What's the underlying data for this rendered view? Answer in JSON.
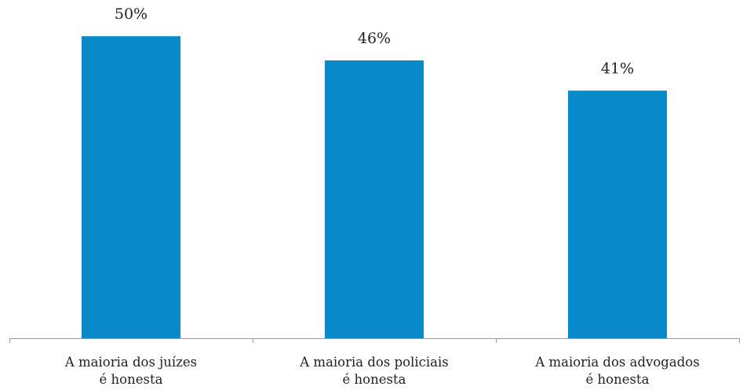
{
  "chart_data": {
    "type": "bar",
    "categories": [
      [
        "A maioria dos juízes",
        "é honesta"
      ],
      [
        "A maioria dos policiais",
        "é honesta"
      ],
      [
        "A maioria dos advogados",
        "é honesta"
      ]
    ],
    "values": [
      50,
      46,
      41
    ],
    "data_labels": [
      "50%",
      "46%",
      "41%"
    ],
    "title": "",
    "xlabel": "",
    "ylabel": "",
    "ylim": [
      0,
      56
    ],
    "grid": false,
    "legend": "none",
    "colors": {
      "bar": "#0789CA",
      "axis": "#9a9a9a",
      "text": "#222222"
    }
  }
}
